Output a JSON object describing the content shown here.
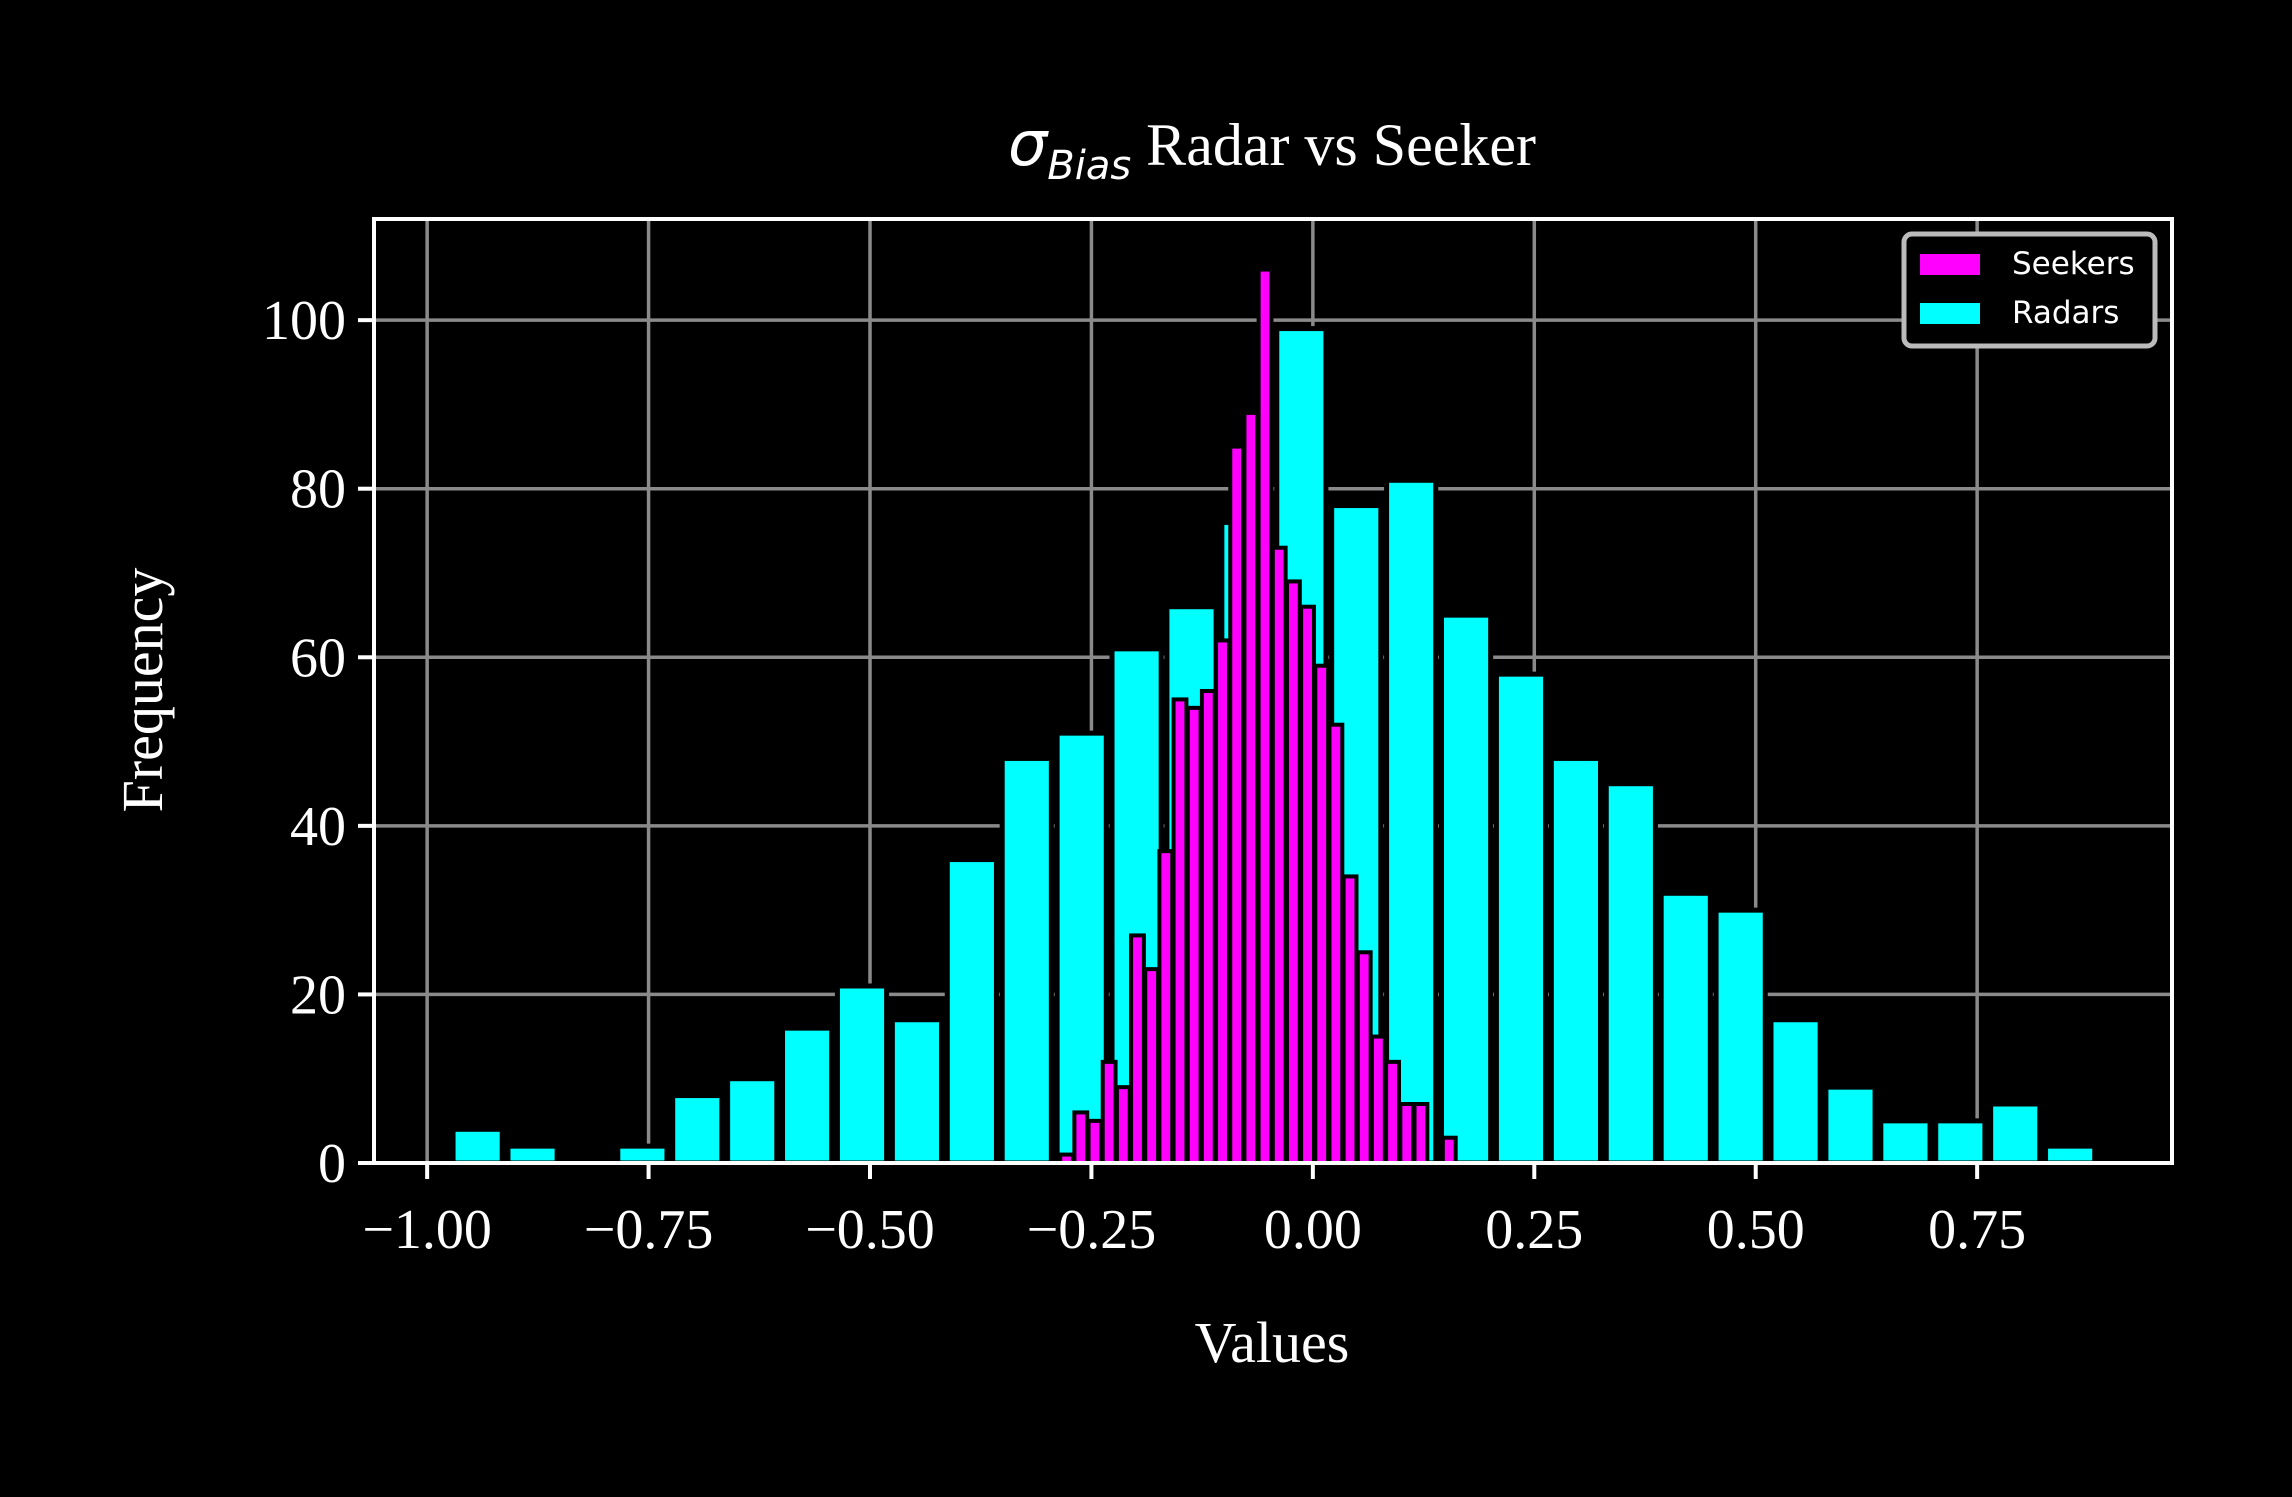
{
  "chart_data": {
    "type": "bar",
    "title": {
      "sigma": "σ",
      "subscript": "Bias",
      "rest": " Radar vs Seeker"
    },
    "xlabel": "Values",
    "ylabel": "Frequency",
    "xlim": [
      -1.06,
      0.97
    ],
    "ylim": [
      0,
      112
    ],
    "x_ticks": [
      -1.0,
      -0.75,
      -0.5,
      -0.25,
      0.0,
      0.25,
      0.5,
      0.75
    ],
    "x_tick_labels": [
      "−1.00",
      "−0.75",
      "−0.50",
      "−0.25",
      "0.00",
      "0.25",
      "0.50",
      "0.75"
    ],
    "y_ticks": [
      0,
      20,
      40,
      60,
      80,
      100
    ],
    "y_tick_labels": [
      "0",
      "20",
      "40",
      "60",
      "80",
      "100"
    ],
    "grid": true,
    "legend_position": "top-right",
    "series": [
      {
        "name": "Radars",
        "color": "#00ffff",
        "bar_width": 0.0555,
        "x": [
          -0.943,
          -0.881,
          -0.819,
          -0.757,
          -0.695,
          -0.633,
          -0.571,
          -0.509,
          -0.447,
          -0.385,
          -0.323,
          -0.261,
          -0.199,
          -0.137,
          -0.075,
          -0.013,
          0.049,
          0.111,
          0.173,
          0.235,
          0.297,
          0.359,
          0.421,
          0.483,
          0.545,
          0.607,
          0.669,
          0.731,
          0.793,
          0.855
        ],
        "values": [
          4,
          2,
          0,
          2,
          8,
          10,
          16,
          21,
          17,
          36,
          48,
          51,
          61,
          66,
          76,
          99,
          78,
          81,
          65,
          58,
          48,
          45,
          32,
          30,
          17,
          9,
          5,
          5,
          7,
          2
        ]
      },
      {
        "name": "Seekers",
        "color": "#ff00ff",
        "bar_width": 0.0145,
        "x": [
          -0.278,
          -0.262,
          -0.246,
          -0.23,
          -0.214,
          -0.198,
          -0.182,
          -0.166,
          -0.15,
          -0.134,
          -0.118,
          -0.102,
          -0.086,
          -0.07,
          -0.054,
          -0.038,
          -0.022,
          -0.006,
          0.01,
          0.026,
          0.042,
          0.058,
          0.074,
          0.09,
          0.106,
          0.122,
          0.138,
          0.154,
          0.17,
          0.186,
          0.202,
          0.218,
          0.234,
          0.25,
          0.266,
          0.282,
          0.298
        ],
        "values": [
          1,
          6,
          5,
          12,
          9,
          27,
          23,
          37,
          55,
          54,
          56,
          62,
          85,
          89,
          106,
          73,
          69,
          66,
          59,
          52,
          34,
          25,
          15,
          12,
          7,
          7,
          0,
          3,
          0,
          0,
          0,
          0,
          0,
          0,
          0,
          0,
          0
        ]
      }
    ],
    "legend": [
      {
        "label": "Seekers",
        "color": "#ff00ff"
      },
      {
        "label": "Radars",
        "color": "#00ffff"
      }
    ]
  }
}
